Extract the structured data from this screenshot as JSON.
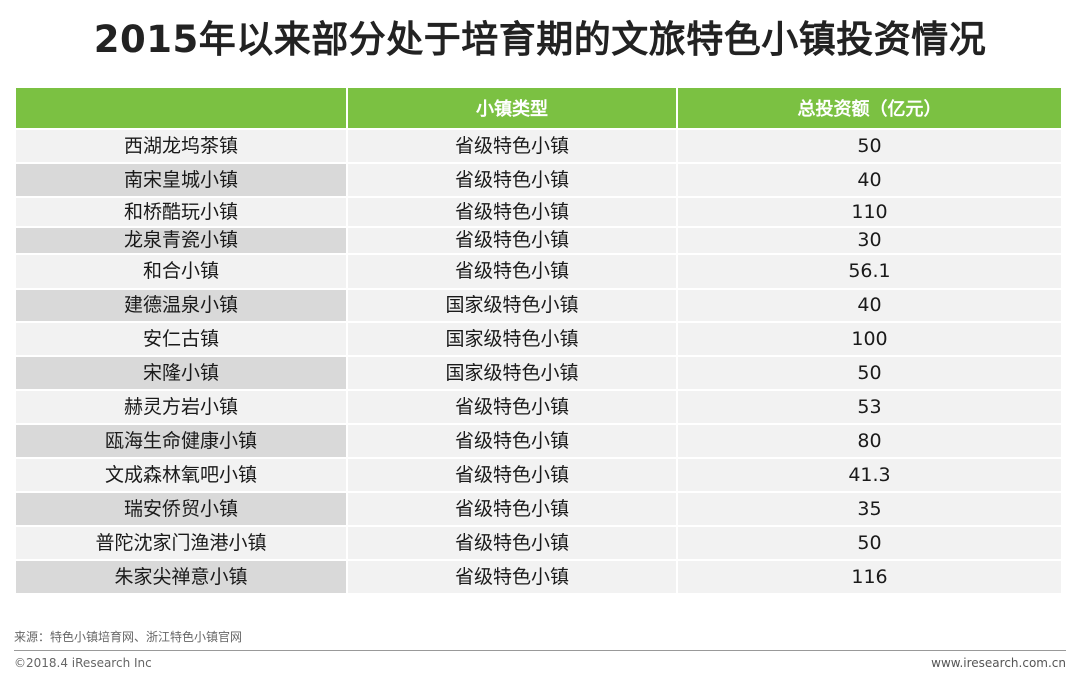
{
  "title": "2015年以来部分处于培育期的文旅特色小镇投资情况",
  "table": {
    "headers": [
      "",
      "小镇类型",
      "总投资额（亿元）"
    ],
    "rows": [
      {
        "name": "西湖龙坞茶镇",
        "type": "省级特色小镇",
        "investment": "50"
      },
      {
        "name": "南宋皇城小镇",
        "type": "省级特色小镇",
        "investment": "40"
      },
      {
        "name": "和桥酷玩小镇",
        "type": "省级特色小镇",
        "investment": "110"
      },
      {
        "name": "龙泉青瓷小镇",
        "type": "省级特色小镇",
        "investment": "30"
      },
      {
        "name": "和合小镇",
        "type": "省级特色小镇",
        "investment": "56.1"
      },
      {
        "name": "建德温泉小镇",
        "type": "国家级特色小镇",
        "investment": "40"
      },
      {
        "name": "安仁古镇",
        "type": "国家级特色小镇",
        "investment": "100"
      },
      {
        "name": "宋隆小镇",
        "type": "国家级特色小镇",
        "investment": "50"
      },
      {
        "name": "赫灵方岩小镇",
        "type": "省级特色小镇",
        "investment": "53"
      },
      {
        "name": "瓯海生命健康小镇",
        "type": "省级特色小镇",
        "investment": "80"
      },
      {
        "name": "文成森林氧吧小镇",
        "type": "省级特色小镇",
        "investment": "41.3"
      },
      {
        "name": "瑞安侨贸小镇",
        "type": "省级特色小镇",
        "investment": "35"
      },
      {
        "name": "普陀沈家门渔港小镇",
        "type": "省级特色小镇",
        "investment": "50"
      },
      {
        "name": "朱家尖禅意小镇",
        "type": "省级特色小镇",
        "investment": "116"
      }
    ]
  },
  "footer": {
    "source": "来源：特色小镇培育网、浙江特色小镇官网",
    "copyright": "©2018.4 iResearch Inc",
    "website": "www.iresearch.com.cn"
  },
  "colors": {
    "header_green": "#7bc142",
    "row_light": "#f2f2f2",
    "row_dark": "#d9d9d9"
  }
}
